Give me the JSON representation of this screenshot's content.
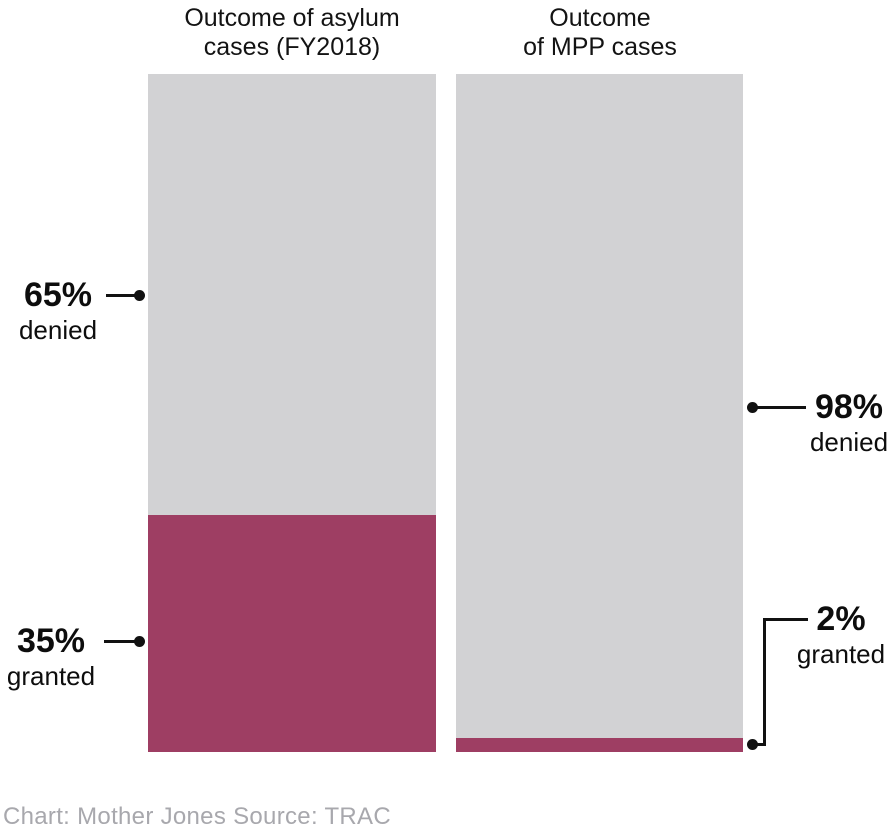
{
  "chart_data": {
    "type": "bar",
    "subtype": "stacked-percentage-columns",
    "ylim": [
      0,
      100
    ],
    "grid": false,
    "legend": "none",
    "charts": [
      {
        "title_lines": [
          "Outcome of asylum",
          "cases (FY2018)"
        ],
        "segments": [
          {
            "label": "denied",
            "value": 65,
            "color": "#d2d2d4"
          },
          {
            "label": "granted",
            "value": 35,
            "color": "#9e3e63"
          }
        ]
      },
      {
        "title_lines": [
          "Outcome",
          "of MPP cases"
        ],
        "segments": [
          {
            "label": "denied",
            "value": 98,
            "color": "#d2d2d4"
          },
          {
            "label": "granted",
            "value": 2,
            "color": "#9e3e63"
          }
        ]
      }
    ]
  },
  "annotations": {
    "asylum_denied": {
      "pct": "65%",
      "word": "denied"
    },
    "asylum_granted": {
      "pct": "35%",
      "word": "granted"
    },
    "mpp_denied": {
      "pct": "98%",
      "word": "denied"
    },
    "mpp_granted": {
      "pct": "2%",
      "word": "granted"
    }
  },
  "footer": {
    "credit": "Chart: Mother Jones Source: TRAC"
  },
  "colors": {
    "denied_gray": "#d2d2d4",
    "granted_maroon": "#9e3e63",
    "annotation_line": "#111111",
    "credit_text": "#a8a8ad"
  }
}
